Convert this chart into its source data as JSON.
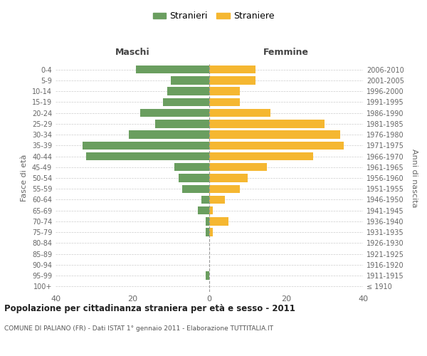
{
  "age_groups": [
    "100+",
    "95-99",
    "90-94",
    "85-89",
    "80-84",
    "75-79",
    "70-74",
    "65-69",
    "60-64",
    "55-59",
    "50-54",
    "45-49",
    "40-44",
    "35-39",
    "30-34",
    "25-29",
    "20-24",
    "15-19",
    "10-14",
    "5-9",
    "0-4"
  ],
  "birth_years": [
    "≤ 1910",
    "1911-1915",
    "1916-1920",
    "1921-1925",
    "1926-1930",
    "1931-1935",
    "1936-1940",
    "1941-1945",
    "1946-1950",
    "1951-1955",
    "1956-1960",
    "1961-1965",
    "1966-1970",
    "1971-1975",
    "1976-1980",
    "1981-1985",
    "1986-1990",
    "1991-1995",
    "1996-2000",
    "2001-2005",
    "2006-2010"
  ],
  "maschi": [
    0,
    1,
    0,
    0,
    0,
    1,
    1,
    3,
    2,
    7,
    8,
    9,
    32,
    33,
    21,
    14,
    18,
    12,
    11,
    10,
    19
  ],
  "femmine": [
    0,
    0,
    0,
    0,
    0,
    1,
    5,
    1,
    4,
    8,
    10,
    15,
    27,
    35,
    34,
    30,
    16,
    8,
    8,
    12,
    12
  ],
  "color_maschi": "#6a9e5f",
  "color_femmine": "#f5b731",
  "title": "Popolazione per cittadinanza straniera per età e sesso - 2011",
  "subtitle": "COMUNE DI PALIANO (FR) - Dati ISTAT 1° gennaio 2011 - Elaborazione TUTTITALIA.IT",
  "ylabel_left": "Fasce di età",
  "ylabel_right": "Anni di nascita",
  "label_maschi": "Maschi",
  "label_femmine": "Femmine",
  "legend_maschi": "Stranieri",
  "legend_femmine": "Straniere",
  "xlim": 40,
  "background_color": "#ffffff",
  "grid_color": "#cccccc"
}
